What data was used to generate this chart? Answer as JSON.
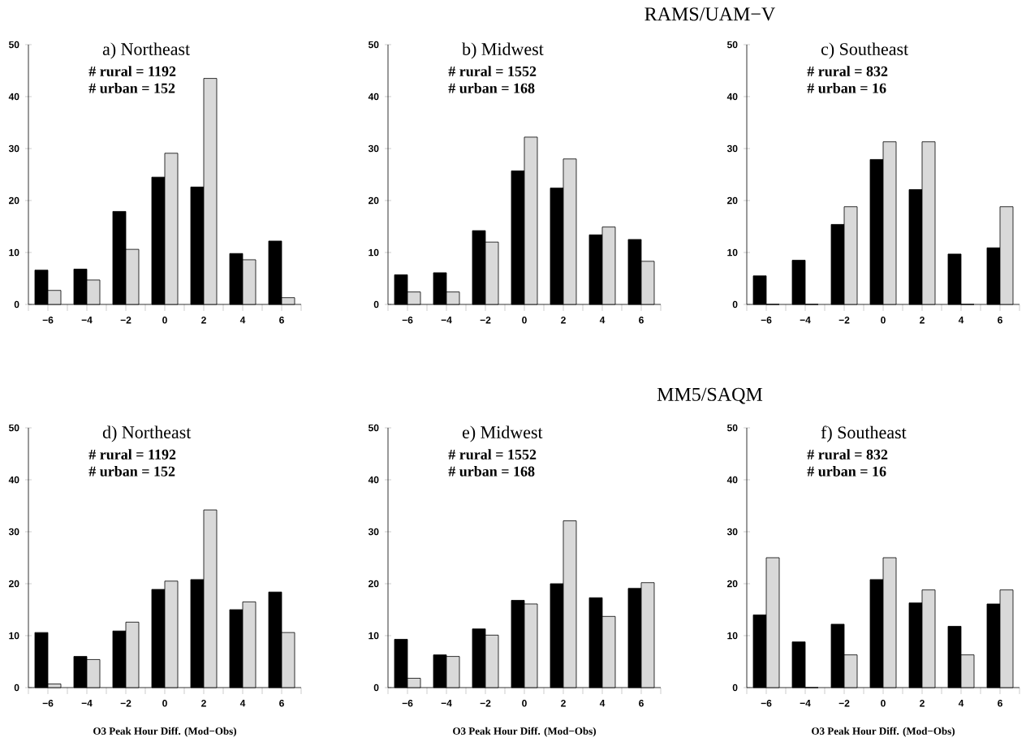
{
  "chart_data": [
    {
      "type": "bar",
      "title": "a) Northeast",
      "annotations": [
        "# rural = 1192",
        "# urban = 152"
      ],
      "categories": [
        "−6",
        "−4",
        "−2",
        "0",
        "2",
        "4",
        "6"
      ],
      "series": [
        {
          "color": "#000000",
          "values": [
            6.6,
            6.8,
            17.9,
            24.5,
            22.6,
            9.8,
            12.2
          ]
        },
        {
          "color": "#d9d9d9",
          "values": [
            2.7,
            4.7,
            10.6,
            29.1,
            43.5,
            8.6,
            1.3
          ]
        }
      ],
      "ylim": [
        0,
        50
      ],
      "yticks": [
        0,
        10,
        20,
        30,
        40,
        50
      ]
    },
    {
      "type": "bar",
      "title": "b) Midwest",
      "subtitle": "RAMS/UAM−V",
      "annotations": [
        "# rural = 1552",
        "# urban = 168"
      ],
      "categories": [
        "−6",
        "−4",
        "−2",
        "0",
        "2",
        "4",
        "6"
      ],
      "series": [
        {
          "color": "#000000",
          "values": [
            5.7,
            6.1,
            14.2,
            25.7,
            22.4,
            13.4,
            12.5
          ]
        },
        {
          "color": "#d9d9d9",
          "values": [
            2.4,
            2.4,
            12.0,
            32.2,
            28.0,
            14.9,
            8.3
          ]
        }
      ],
      "ylim": [
        0,
        50
      ],
      "yticks": [
        0,
        10,
        20,
        30,
        40,
        50
      ]
    },
    {
      "type": "bar",
      "title": "c) Southeast",
      "annotations": [
        "# rural = 832",
        "# urban = 16"
      ],
      "categories": [
        "−6",
        "−4",
        "−2",
        "0",
        "2",
        "4",
        "6"
      ],
      "series": [
        {
          "color": "#000000",
          "values": [
            5.5,
            8.5,
            15.4,
            27.9,
            22.1,
            9.7,
            10.9
          ]
        },
        {
          "color": "#d9d9d9",
          "values": [
            0,
            0,
            18.8,
            31.3,
            31.3,
            0,
            18.8
          ]
        }
      ],
      "ylim": [
        0,
        50
      ],
      "yticks": [
        0,
        10,
        20,
        30,
        40,
        50
      ]
    },
    {
      "type": "bar",
      "title": "d) Northeast",
      "xlabel": "O3 Peak Hour Diff. (Mod−Obs)",
      "annotations": [
        "# rural = 1192",
        "# urban = 152"
      ],
      "categories": [
        "−6",
        "−4",
        "−2",
        "0",
        "2",
        "4",
        "6"
      ],
      "series": [
        {
          "color": "#000000",
          "values": [
            10.6,
            6.0,
            10.9,
            18.9,
            20.8,
            15.0,
            18.4
          ]
        },
        {
          "color": "#d9d9d9",
          "values": [
            0.7,
            5.4,
            12.6,
            20.5,
            34.2,
            16.5,
            10.6
          ]
        }
      ],
      "ylim": [
        0,
        50
      ],
      "yticks": [
        0,
        10,
        20,
        30,
        40,
        50
      ]
    },
    {
      "type": "bar",
      "title": "e) Midwest",
      "subtitle": "MM5/SAQM",
      "xlabel": "O3 Peak Hour Diff. (Mod−Obs)",
      "annotations": [
        "# rural = 1552",
        "# urban = 168"
      ],
      "categories": [
        "−6",
        "−4",
        "−2",
        "0",
        "2",
        "4",
        "6"
      ],
      "series": [
        {
          "color": "#000000",
          "values": [
            9.3,
            6.3,
            11.3,
            16.8,
            20.0,
            17.3,
            19.1
          ]
        },
        {
          "color": "#d9d9d9",
          "values": [
            1.8,
            6.0,
            10.1,
            16.1,
            32.1,
            13.7,
            20.2
          ]
        }
      ],
      "ylim": [
        0,
        50
      ],
      "yticks": [
        0,
        10,
        20,
        30,
        40,
        50
      ]
    },
    {
      "type": "bar",
      "title": "f) Southeast",
      "xlabel": "O3 Peak Hour Diff. (Mod−Obs)",
      "annotations": [
        "# rural = 832",
        "# urban = 16"
      ],
      "categories": [
        "−6",
        "−4",
        "−2",
        "0",
        "2",
        "4",
        "6"
      ],
      "series": [
        {
          "color": "#000000",
          "values": [
            14.0,
            8.8,
            12.2,
            20.8,
            16.3,
            11.8,
            16.1
          ]
        },
        {
          "color": "#d9d9d9",
          "values": [
            25.0,
            0,
            6.3,
            25.0,
            18.8,
            6.3,
            18.8
          ]
        }
      ],
      "ylim": [
        0,
        50
      ],
      "yticks": [
        0,
        10,
        20,
        30,
        40,
        50
      ]
    }
  ]
}
